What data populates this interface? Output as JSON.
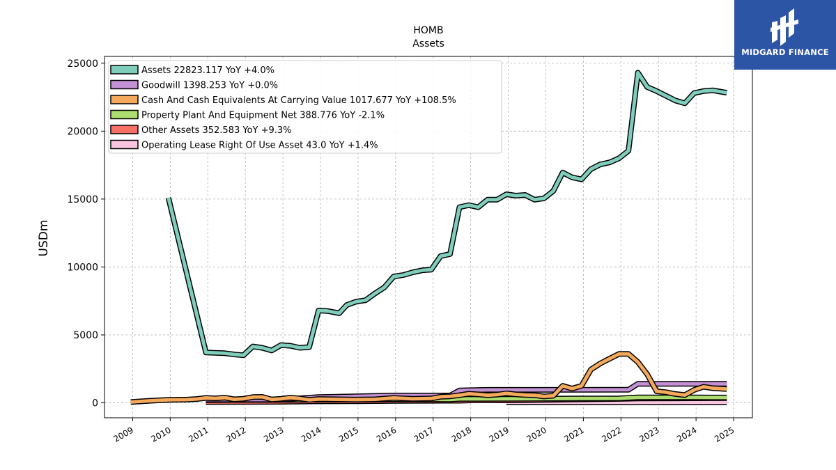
{
  "chart_data": {
    "type": "line",
    "title": "HOMB",
    "subtitle": "Assets",
    "ylabel": "USDm",
    "xlabel": "",
    "ylim": [
      -1100,
      25500
    ],
    "xlim": [
      2008.25,
      2025.5
    ],
    "yticks": [
      0,
      5000,
      10000,
      15000,
      20000,
      25000
    ],
    "xticks": [
      "2009",
      "2010",
      "2011",
      "2012",
      "2013",
      "2014",
      "2015",
      "2016",
      "2017",
      "2018",
      "2019",
      "2020",
      "2021",
      "2022",
      "2023",
      "2024",
      "2025"
    ],
    "grid": true,
    "legend_position": "top-left",
    "legend": [
      "Assets  22823.117 YoY +4.0%",
      "Goodwill  1398.253 YoY +0.0%",
      "Cash And Cash Equivalents At Carrying Value  1017.677 YoY +108.5%",
      "Property Plant And Equipment Net  388.776 YoY -2.1%",
      "Other Assets  352.583 YoY +9.3%",
      "Operating Lease Right Of Use Asset  43.0 YoY +1.4%"
    ],
    "series": [
      {
        "name": "Assets",
        "color": "#7fcdbb",
        "points": [
          [
            2009.95,
            15100
          ],
          [
            2010.95,
            3700
          ],
          [
            2011.45,
            3650
          ],
          [
            2011.75,
            3550
          ],
          [
            2011.95,
            3500
          ],
          [
            2012.2,
            4150
          ],
          [
            2012.45,
            4050
          ],
          [
            2012.7,
            3850
          ],
          [
            2012.95,
            4250
          ],
          [
            2013.2,
            4200
          ],
          [
            2013.45,
            4050
          ],
          [
            2013.7,
            4100
          ],
          [
            2013.95,
            6800
          ],
          [
            2014.2,
            6750
          ],
          [
            2014.5,
            6600
          ],
          [
            2014.7,
            7200
          ],
          [
            2014.95,
            7450
          ],
          [
            2015.2,
            7550
          ],
          [
            2015.45,
            8050
          ],
          [
            2015.7,
            8500
          ],
          [
            2015.95,
            9300
          ],
          [
            2016.2,
            9400
          ],
          [
            2016.45,
            9600
          ],
          [
            2016.7,
            9750
          ],
          [
            2016.95,
            9800
          ],
          [
            2017.2,
            10800
          ],
          [
            2017.45,
            10950
          ],
          [
            2017.7,
            14400
          ],
          [
            2017.95,
            14550
          ],
          [
            2018.2,
            14400
          ],
          [
            2018.45,
            14950
          ],
          [
            2018.7,
            14950
          ],
          [
            2018.95,
            15350
          ],
          [
            2019.2,
            15250
          ],
          [
            2019.45,
            15300
          ],
          [
            2019.7,
            14950
          ],
          [
            2019.95,
            15050
          ],
          [
            2020.2,
            15600
          ],
          [
            2020.45,
            16950
          ],
          [
            2020.7,
            16600
          ],
          [
            2020.95,
            16450
          ],
          [
            2021.2,
            17200
          ],
          [
            2021.45,
            17550
          ],
          [
            2021.7,
            17700
          ],
          [
            2021.95,
            18000
          ],
          [
            2022.2,
            18550
          ],
          [
            2022.45,
            24300
          ],
          [
            2022.7,
            23250
          ],
          [
            2022.95,
            22950
          ],
          [
            2023.2,
            22600
          ],
          [
            2023.45,
            22250
          ],
          [
            2023.7,
            22050
          ],
          [
            2023.95,
            22800
          ],
          [
            2024.2,
            22950
          ],
          [
            2024.45,
            23000
          ],
          [
            2024.82,
            22823
          ]
        ]
      },
      {
        "name": "Goodwill",
        "color": "#c390d4",
        "points": [
          [
            2010.95,
            240
          ],
          [
            2012.95,
            240
          ],
          [
            2013.95,
            420
          ],
          [
            2015.95,
            540
          ],
          [
            2017.45,
            540
          ],
          [
            2017.7,
            910
          ],
          [
            2018.45,
            955
          ],
          [
            2021.95,
            960
          ],
          [
            2022.2,
            960
          ],
          [
            2022.45,
            1398
          ],
          [
            2024.82,
            1398
          ]
        ]
      },
      {
        "name": "Cash And Cash Equivalents At Carrying Value",
        "color": "#f4a95c",
        "points": [
          [
            2008.95,
            60
          ],
          [
            2009.45,
            150
          ],
          [
            2009.95,
            220
          ],
          [
            2010.45,
            240
          ],
          [
            2010.7,
            280
          ],
          [
            2010.95,
            360
          ],
          [
            2011.2,
            330
          ],
          [
            2011.45,
            380
          ],
          [
            2011.7,
            260
          ],
          [
            2011.95,
            300
          ],
          [
            2012.2,
            420
          ],
          [
            2012.45,
            440
          ],
          [
            2012.7,
            250
          ],
          [
            2012.95,
            300
          ],
          [
            2013.2,
            380
          ],
          [
            2013.45,
            320
          ],
          [
            2013.7,
            220
          ],
          [
            2013.95,
            280
          ],
          [
            2014.45,
            260
          ],
          [
            2014.95,
            240
          ],
          [
            2015.45,
            260
          ],
          [
            2015.95,
            360
          ],
          [
            2016.45,
            300
          ],
          [
            2016.95,
            320
          ],
          [
            2017.2,
            450
          ],
          [
            2017.45,
            480
          ],
          [
            2017.7,
            560
          ],
          [
            2017.95,
            670
          ],
          [
            2018.2,
            620
          ],
          [
            2018.45,
            560
          ],
          [
            2018.7,
            600
          ],
          [
            2018.95,
            700
          ],
          [
            2019.2,
            620
          ],
          [
            2019.45,
            580
          ],
          [
            2019.7,
            560
          ],
          [
            2019.95,
            470
          ],
          [
            2020.2,
            520
          ],
          [
            2020.45,
            1250
          ],
          [
            2020.7,
            1050
          ],
          [
            2020.95,
            1250
          ],
          [
            2021.2,
            2450
          ],
          [
            2021.45,
            2900
          ],
          [
            2021.7,
            3250
          ],
          [
            2021.95,
            3600
          ],
          [
            2022.2,
            3600
          ],
          [
            2022.45,
            3000
          ],
          [
            2022.7,
            2100
          ],
          [
            2022.95,
            850
          ],
          [
            2023.2,
            780
          ],
          [
            2023.45,
            650
          ],
          [
            2023.7,
            570
          ],
          [
            2023.95,
            950
          ],
          [
            2024.2,
            1180
          ],
          [
            2024.45,
            1080
          ],
          [
            2024.82,
            1018
          ]
        ]
      },
      {
        "name": "Property Plant And Equipment Net",
        "color": "#addd6f",
        "points": [
          [
            2010.95,
            200
          ],
          [
            2011.95,
            210
          ],
          [
            2012.95,
            215
          ],
          [
            2013.95,
            235
          ],
          [
            2015.95,
            260
          ],
          [
            2017.45,
            250
          ],
          [
            2017.7,
            290
          ],
          [
            2018.95,
            300
          ],
          [
            2019.95,
            310
          ],
          [
            2020.95,
            320
          ],
          [
            2021.95,
            330
          ],
          [
            2022.45,
            400
          ],
          [
            2023.95,
            397
          ],
          [
            2024.82,
            389
          ]
        ]
      },
      {
        "name": "Other Assets",
        "color": "#f87168",
        "points": [
          [
            2010.95,
            60
          ],
          [
            2011.95,
            70
          ],
          [
            2012.95,
            80
          ],
          [
            2013.95,
            110
          ],
          [
            2014.95,
            120
          ],
          [
            2015.95,
            140
          ],
          [
            2016.95,
            150
          ],
          [
            2017.7,
            155
          ],
          [
            2018.2,
            190
          ],
          [
            2018.95,
            180
          ],
          [
            2019.95,
            220
          ],
          [
            2020.95,
            260
          ],
          [
            2021.95,
            290
          ],
          [
            2022.45,
            320
          ],
          [
            2023.45,
            330
          ],
          [
            2024.82,
            353
          ]
        ]
      },
      {
        "name": "Operating Lease Right Of Use Asset",
        "color": "#f9c4dd",
        "points": [
          [
            2018.95,
            40
          ],
          [
            2024.82,
            43
          ]
        ]
      }
    ]
  },
  "logo": {
    "text": "MIDGARD FINANCE",
    "color": "#2d55a6"
  }
}
